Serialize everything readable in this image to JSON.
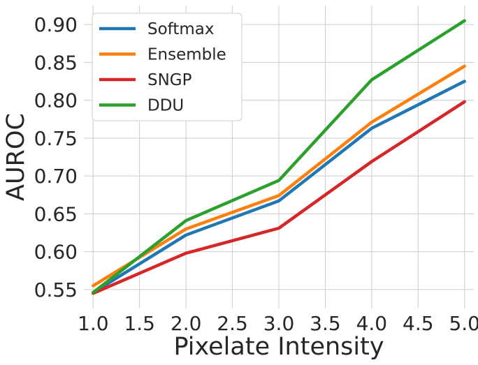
{
  "chart_data": {
    "type": "line",
    "title": "",
    "xlabel": "Pixelate Intensity",
    "ylabel": "AUROC",
    "xlim": [
      0.9,
      5.1
    ],
    "ylim": [
      0.525,
      0.925
    ],
    "x_ticks": [
      1.0,
      1.5,
      2.0,
      2.5,
      3.0,
      3.5,
      4.0,
      4.5,
      5.0
    ],
    "x_tick_labels": [
      "1.0",
      "1.5",
      "2.0",
      "2.5",
      "3.0",
      "3.5",
      "4.0",
      "4.5",
      "5.0"
    ],
    "y_ticks": [
      0.55,
      0.6,
      0.65,
      0.7,
      0.75,
      0.8,
      0.85,
      0.9
    ],
    "y_tick_labels": [
      "0.55",
      "0.60",
      "0.65",
      "0.70",
      "0.75",
      "0.80",
      "0.85",
      "0.90"
    ],
    "grid": true,
    "legend_position": "top-left",
    "x": [
      1.0,
      2.0,
      3.0,
      4.0,
      5.0
    ],
    "series": [
      {
        "name": "Softmax",
        "color": "#1f77b4",
        "values": [
          0.546,
          0.622,
          0.667,
          0.763,
          0.825
        ]
      },
      {
        "name": "Ensemble",
        "color": "#ff7f0e",
        "values": [
          0.555,
          0.63,
          0.674,
          0.771,
          0.845
        ]
      },
      {
        "name": "SNGP",
        "color": "#d62728",
        "values": [
          0.545,
          0.598,
          0.631,
          0.719,
          0.798
        ]
      },
      {
        "name": "DDU",
        "color": "#2ca02c",
        "values": [
          0.546,
          0.641,
          0.694,
          0.827,
          0.905
        ]
      }
    ]
  }
}
